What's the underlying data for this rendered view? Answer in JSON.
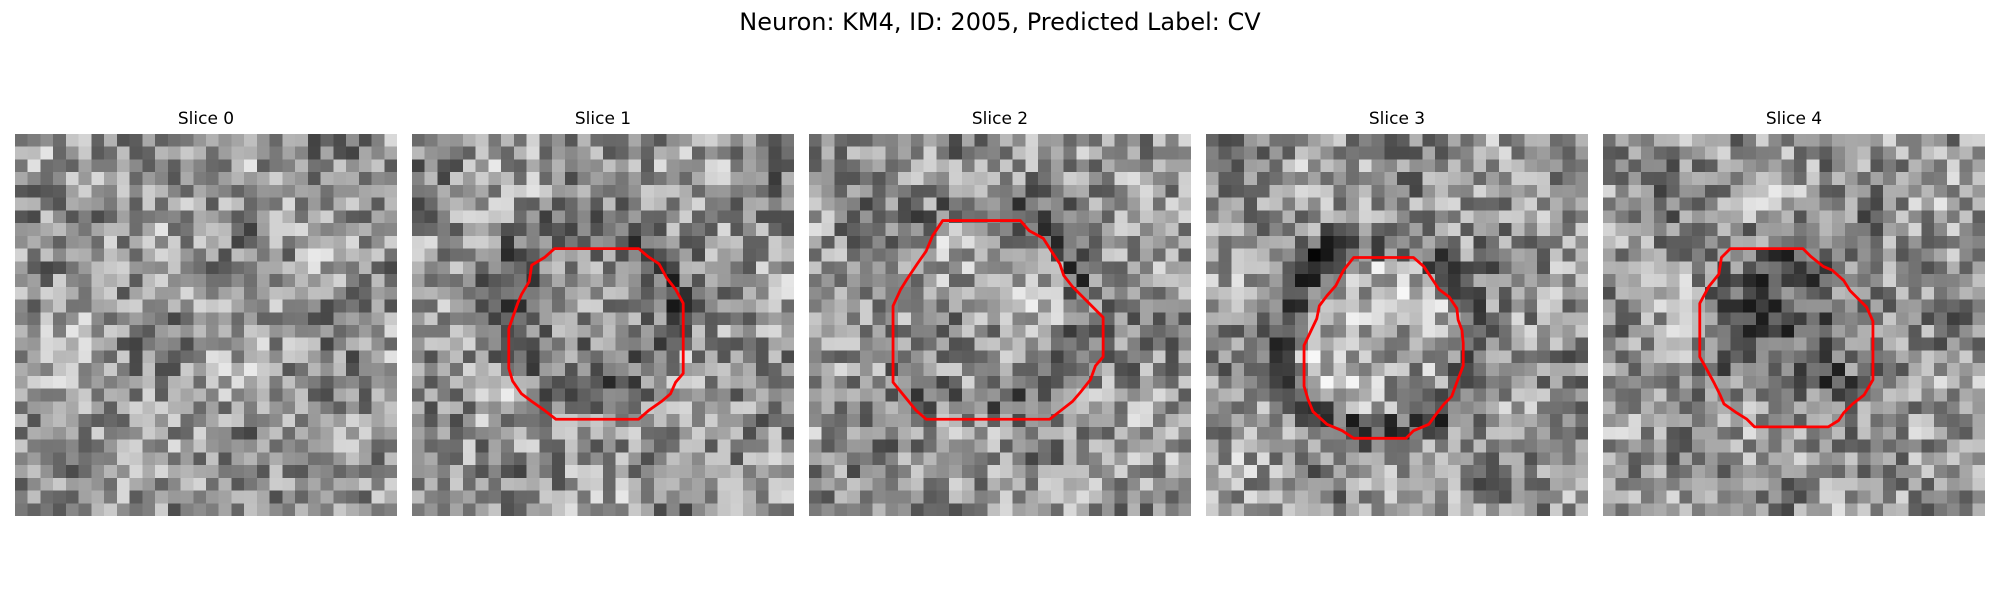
{
  "figure": {
    "title": "Neuron: KM4, ID: 2005, Predicted Label: CV"
  },
  "colors": {
    "contour": "#ff0000",
    "background": "#ffffff"
  },
  "panels": [
    {
      "title": "Slice 0",
      "has_contour": false,
      "seed": 11
    },
    {
      "title": "Slice 1",
      "has_contour": true,
      "seed": 23
    },
    {
      "title": "Slice 2",
      "has_contour": true,
      "seed": 37
    },
    {
      "title": "Slice 3",
      "has_contour": true,
      "seed": 53
    },
    {
      "title": "Slice 4",
      "has_contour": true,
      "seed": 71
    }
  ]
}
